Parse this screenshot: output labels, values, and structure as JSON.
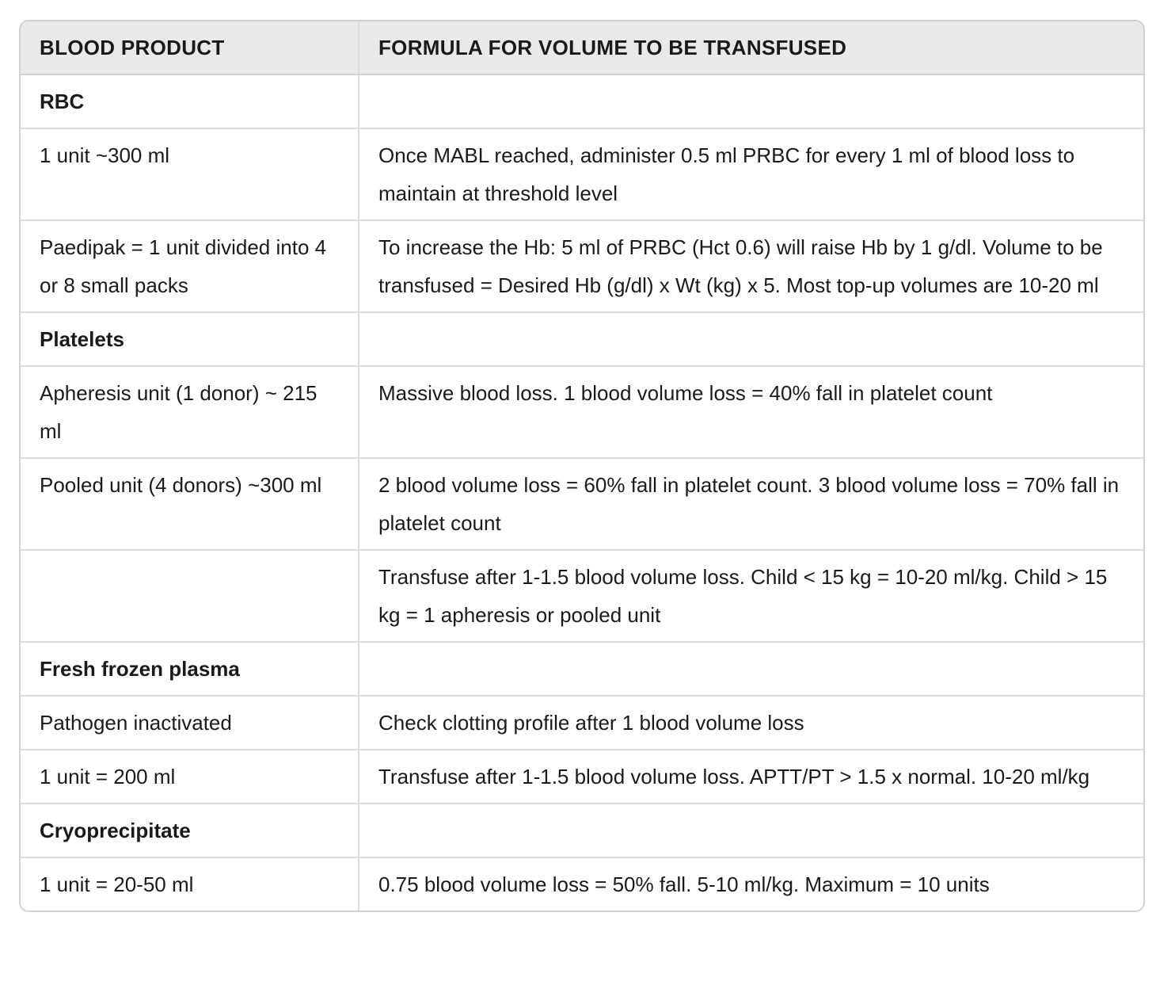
{
  "table": {
    "headers": [
      "BLOOD PRODUCT",
      "FORMULA FOR VOLUME TO BE TRANSFUSED"
    ],
    "rows": [
      {
        "product": "RBC",
        "formula": "",
        "section": true
      },
      {
        "product": "1 unit ~300 ml",
        "formula": "Once MABL reached, administer 0.5 ml PRBC for every 1 ml of blood loss to maintain at threshold level",
        "section": false
      },
      {
        "product": "Paedipak = 1 unit divided into 4 or 8 small packs",
        "formula": "To increase the Hb: 5 ml of PRBC (Hct 0.6) will raise Hb by 1 g/dl. Volume to be transfused = Desired Hb (g/dl) x Wt (kg) x 5. Most top-up volumes are 10-20 ml",
        "section": false
      },
      {
        "product": "Platelets",
        "formula": "",
        "section": true
      },
      {
        "product": "Apheresis unit (1 donor) ~ 215 ml",
        "formula": "Massive blood loss. 1 blood volume loss = 40% fall in platelet count",
        "section": false
      },
      {
        "product": "Pooled unit (4 donors) ~300 ml",
        "formula": "2 blood volume loss = 60% fall in platelet count. 3 blood volume loss = 70% fall in platelet count",
        "section": false
      },
      {
        "product": "",
        "formula": "Transfuse after 1-1.5 blood volume loss. Child < 15 kg = 10-20 ml/kg. Child > 15 kg = 1 apheresis or pooled unit",
        "section": false
      },
      {
        "product": "Fresh frozen plasma",
        "formula": "",
        "section": true
      },
      {
        "product": "Pathogen inactivated",
        "formula": "Check clotting profile after 1 blood volume loss",
        "section": false
      },
      {
        "product": "1 unit = 200 ml",
        "formula": "Transfuse after 1-1.5 blood volume loss. APTT/PT > 1.5 x normal. 10-20 ml/kg",
        "section": false
      },
      {
        "product": "Cryoprecipitate",
        "formula": "",
        "section": true
      },
      {
        "product": "1 unit = 20-50 ml",
        "formula": "0.75 blood volume loss = 50% fall. 5-10 ml/kg. Maximum = 10 units",
        "section": false
      }
    ]
  }
}
